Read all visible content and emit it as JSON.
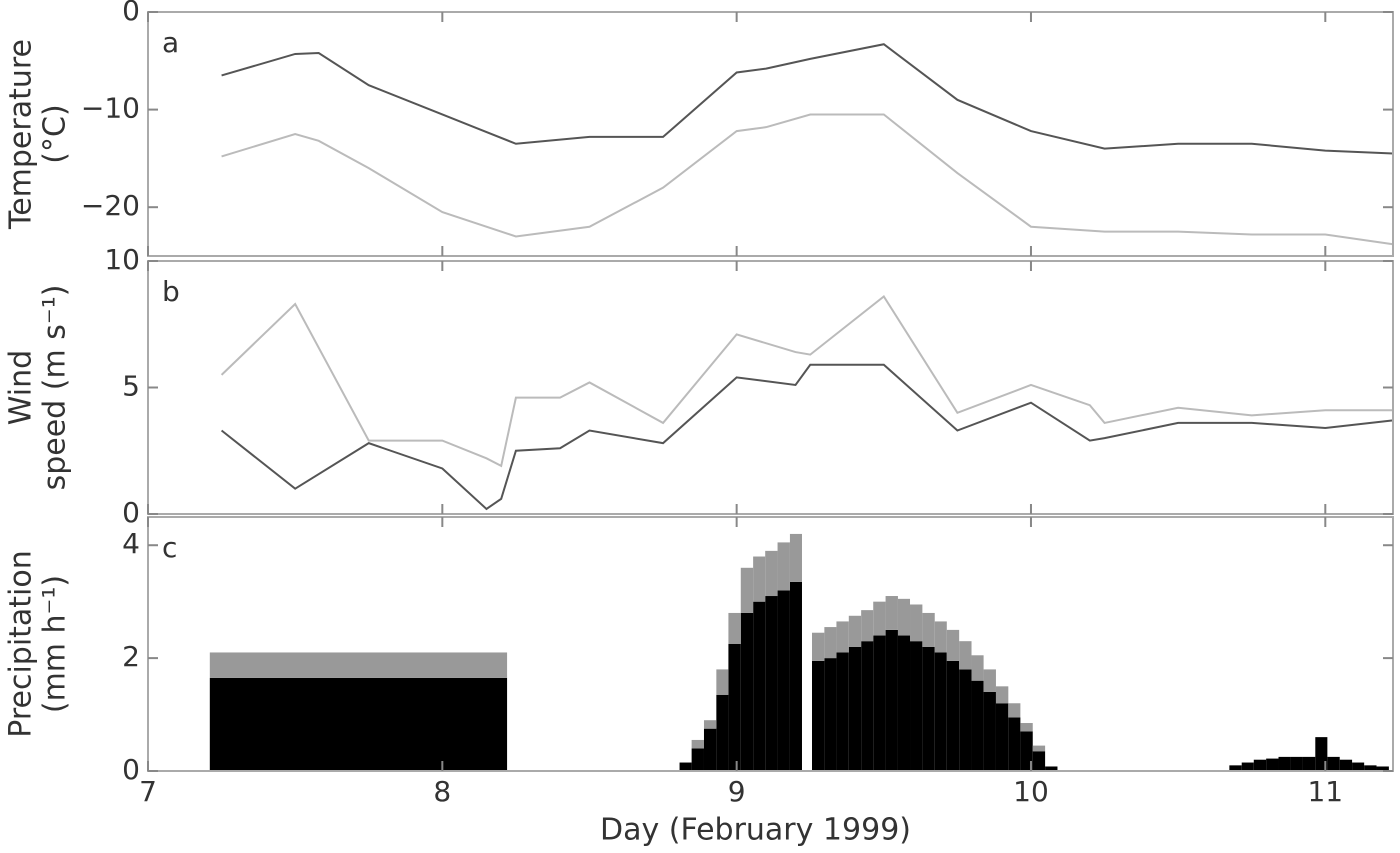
{
  "chart_data": [
    {
      "type": "line",
      "label": "a",
      "y_label": [
        "Temperature",
        "(°C)"
      ],
      "x": [
        7.25,
        7.5,
        7.58,
        7.75,
        8,
        8.25,
        8.5,
        8.75,
        9,
        9.1,
        9.25,
        9.5,
        9.75,
        10,
        10.25,
        10.5,
        10.75,
        11,
        11.23
      ],
      "series": [
        {
          "color": "#555555",
          "values": [
            -6.5,
            -4.3,
            -4.2,
            -7.5,
            -10.5,
            -13.5,
            -12.8,
            -12.8,
            -6.2,
            -5.8,
            -4.8,
            -3.3,
            -9,
            -12.2,
            -14,
            -13.5,
            -13.5,
            -14.2,
            -14.5
          ]
        },
        {
          "color": "#bbbbbb",
          "values": [
            -14.8,
            -12.5,
            -13.2,
            -16,
            -20.5,
            -23,
            -22,
            -18,
            -12.2,
            -11.8,
            -10.5,
            -10.5,
            -16.5,
            -22,
            -22.5,
            -22.5,
            -22.8,
            -22.8,
            -23.8
          ]
        }
      ],
      "xlim": [
        7,
        11.23
      ],
      "xticks": [
        7,
        8,
        9,
        10,
        11
      ],
      "ylim": [
        -25,
        0
      ],
      "yticks": [
        0,
        {
          "value": -10,
          "label": "−10"
        },
        {
          "value": -20,
          "label": "−20"
        }
      ]
    },
    {
      "type": "line",
      "label": "b",
      "y_label": [
        "Wind",
        "speed (m s⁻¹)"
      ],
      "x": [
        7.25,
        7.5,
        7.75,
        8,
        8.15,
        8.2,
        8.25,
        8.4,
        8.5,
        8.75,
        9,
        9.2,
        9.25,
        9.5,
        9.75,
        10,
        10.2,
        10.25,
        10.5,
        10.75,
        11,
        11.23
      ],
      "series": [
        {
          "color": "#bbbbbb",
          "values": [
            5.5,
            8.3,
            2.9,
            2.9,
            2.2,
            1.9,
            4.6,
            4.6,
            5.2,
            3.6,
            7.1,
            6.4,
            6.3,
            8.6,
            4,
            5.1,
            4.3,
            3.6,
            4.2,
            3.9,
            4.1,
            4.1
          ]
        },
        {
          "color": "#555555",
          "values": [
            3.3,
            1,
            2.8,
            1.8,
            0.2,
            0.6,
            2.5,
            2.6,
            3.3,
            2.8,
            5.4,
            5.1,
            5.9,
            5.9,
            3.3,
            4.4,
            2.9,
            3.0,
            3.6,
            3.6,
            3.4,
            3.7
          ]
        }
      ],
      "xlim": [
        7,
        11.23
      ],
      "xticks": [
        7,
        8,
        9,
        10,
        11
      ],
      "ylim": [
        0,
        10
      ],
      "yticks": [
        0,
        5,
        10
      ]
    },
    {
      "type": "histogram",
      "stacked": true,
      "label": "c",
      "y_label": [
        "Precipitation",
        "(mm h⁻¹)"
      ],
      "x_label": "Day (February 1999)",
      "bins": [
        7.21,
        8.22,
        8.806,
        8.847,
        8.889,
        8.931,
        8.972,
        9.014,
        9.056,
        9.097,
        9.139,
        9.181,
        9.222,
        9.256,
        9.298,
        9.339,
        9.381,
        9.423,
        9.464,
        9.506,
        9.548,
        9.589,
        9.631,
        9.673,
        9.714,
        9.756,
        9.798,
        9.839,
        9.881,
        9.923,
        9.964,
        10.006,
        10.048,
        10.09,
        10.674,
        10.716,
        10.757,
        10.799,
        10.841,
        10.882,
        10.924,
        10.966,
        11.007,
        11.049,
        11.091,
        11.132,
        11.174,
        11.216
      ],
      "series": [
        {
          "color": "#000000",
          "values": [
            1.65,
            0,
            0.15,
            0.4,
            0.75,
            1.35,
            2.25,
            2.8,
            3.0,
            3.1,
            3.2,
            3.35,
            0,
            1.95,
            2.0,
            2.1,
            2.2,
            2.3,
            2.4,
            2.5,
            2.4,
            2.3,
            2.2,
            2.1,
            1.95,
            1.8,
            1.6,
            1.4,
            1.2,
            0.95,
            0.7,
            0.35,
            0.08,
            0,
            0.1,
            0.15,
            0.2,
            0.22,
            0.25,
            0.25,
            0.25,
            0.6,
            0.25,
            0.2,
            0.15,
            0.1,
            0.08
          ]
        },
        {
          "color": "#999999",
          "values": [
            0.45,
            0,
            0,
            0.15,
            0.15,
            0.45,
            0.55,
            0.8,
            0.8,
            0.8,
            0.85,
            0.85,
            0,
            0.5,
            0.55,
            0.55,
            0.55,
            0.55,
            0.6,
            0.6,
            0.65,
            0.65,
            0.6,
            0.55,
            0.55,
            0.5,
            0.45,
            0.4,
            0.3,
            0.25,
            0.15,
            0.1,
            0,
            0,
            0,
            0,
            0,
            0,
            0,
            0,
            0,
            0,
            0,
            0,
            0,
            0,
            0
          ]
        }
      ],
      "xlim": [
        7,
        11.23
      ],
      "xticks": [
        7,
        8,
        9,
        10,
        11
      ],
      "ylim": [
        0,
        4.5
      ],
      "yticks": [
        0,
        2,
        4
      ]
    }
  ]
}
